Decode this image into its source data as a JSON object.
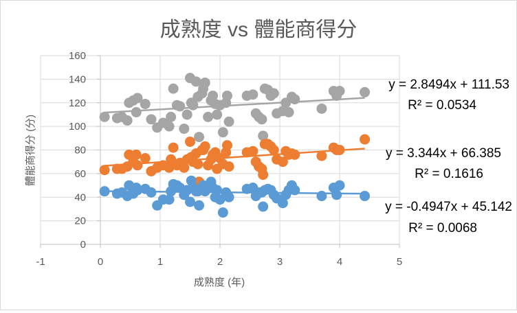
{
  "chart_data": {
    "type": "scatter",
    "title": "成熟度 vs 體能商得分",
    "xlabel": "成熟度 (年)",
    "ylabel": "體能商得分 (分)",
    "xlim": [
      -1,
      5
    ],
    "ylim": [
      0,
      160
    ],
    "xticks": [
      "-1",
      "0",
      "1",
      "2",
      "3",
      "4",
      "5"
    ],
    "yticks": [
      "0",
      "20",
      "40",
      "60",
      "80",
      "100",
      "120",
      "140",
      "160"
    ],
    "grid": true,
    "legend": "none",
    "colors": {
      "blue": "#5b9bd5",
      "orange": "#ed7d31",
      "gray": "#a5a5a5"
    },
    "series": [
      {
        "color": "#a5a5a5",
        "trendline": {
          "slope": 2.8494,
          "intercept": 111.53,
          "x_range": [
            0.07,
            4.42
          ]
        },
        "equation": "y = 2.8494x + 111.53",
        "r2": "R² = 0.0534",
        "x": [
          0.07,
          0.28,
          0.36,
          0.45,
          0.48,
          0.55,
          0.6,
          0.62,
          0.75,
          0.85,
          0.95,
          1.05,
          1.15,
          1.18,
          1.22,
          1.28,
          1.33,
          1.4,
          1.45,
          1.5,
          1.52,
          1.55,
          1.6,
          1.63,
          1.65,
          1.7,
          1.72,
          1.75,
          1.8,
          1.85,
          1.88,
          1.92,
          1.95,
          2.0,
          2.05,
          2.1,
          2.12,
          2.15,
          2.45,
          2.55,
          2.6,
          2.65,
          2.7,
          2.72,
          2.75,
          2.8,
          2.85,
          2.9,
          2.95,
          3.05,
          3.1,
          3.15,
          3.2,
          3.25,
          3.7,
          3.9,
          3.95,
          4.0,
          4.42
        ],
        "y": [
          108,
          107,
          108,
          105,
          120,
          122,
          112,
          124,
          119,
          106,
          99,
          103,
          100,
          108,
          132,
          118,
          117,
          98,
          110,
          141,
          120,
          118,
          138,
          125,
          91,
          128,
          132,
          137,
          108,
          122,
          126,
          119,
          110,
          118,
          95,
          120,
          126,
          104,
          126,
          127,
          111,
          108,
          106,
          92,
          132,
          131,
          126,
          128,
          111,
          113,
          120,
          112,
          125,
          123,
          115,
          130,
          126,
          130,
          129
        ]
      },
      {
        "color": "#ed7d31",
        "trendline": {
          "slope": 3.344,
          "intercept": 66.385,
          "x_range": [
            0.07,
            4.42
          ]
        },
        "equation": "y = 3.344x + 66.385",
        "r2": "R² = 0.1616",
        "x": [
          0.07,
          0.28,
          0.36,
          0.45,
          0.48,
          0.55,
          0.6,
          0.62,
          0.75,
          0.85,
          0.95,
          1.05,
          1.15,
          1.18,
          1.22,
          1.28,
          1.33,
          1.4,
          1.45,
          1.5,
          1.52,
          1.55,
          1.6,
          1.63,
          1.65,
          1.7,
          1.72,
          1.75,
          1.8,
          1.85,
          1.88,
          1.92,
          1.95,
          2.0,
          2.05,
          2.1,
          2.12,
          2.15,
          2.45,
          2.55,
          2.6,
          2.65,
          2.7,
          2.72,
          2.75,
          2.8,
          2.85,
          2.9,
          2.95,
          3.05,
          3.1,
          3.15,
          3.2,
          3.25,
          3.7,
          3.9,
          3.95,
          4.0,
          4.42
        ],
        "y": [
          63,
          64,
          64,
          66,
          76,
          70,
          76,
          67,
          73,
          62,
          65,
          67,
          65,
          72,
          82,
          67,
          69,
          65,
          72,
          87,
          74,
          70,
          77,
          68,
          53,
          80,
          80,
          83,
          67,
          72,
          76,
          78,
          64,
          73,
          68,
          78,
          84,
          66,
          78,
          79,
          70,
          66,
          64,
          59,
          85,
          85,
          83,
          80,
          72,
          70,
          79,
          76,
          77,
          76,
          75,
          82,
          80,
          80,
          89
        ]
      },
      {
        "color": "#5b9bd5",
        "trendline": {
          "slope": -0.4947,
          "intercept": 45.142,
          "x_range": [
            0.07,
            4.42
          ]
        },
        "equation": "y = -0.4947x + 45.142",
        "r2": "R² = 0.0068",
        "x": [
          0.07,
          0.28,
          0.36,
          0.45,
          0.48,
          0.55,
          0.6,
          0.62,
          0.75,
          0.85,
          0.95,
          1.05,
          1.15,
          1.18,
          1.22,
          1.28,
          1.33,
          1.4,
          1.45,
          1.5,
          1.52,
          1.55,
          1.6,
          1.63,
          1.65,
          1.7,
          1.72,
          1.75,
          1.8,
          1.85,
          1.88,
          1.92,
          1.95,
          2.0,
          2.05,
          2.1,
          2.12,
          2.15,
          2.45,
          2.55,
          2.6,
          2.65,
          2.7,
          2.72,
          2.75,
          2.8,
          2.85,
          2.9,
          2.95,
          3.05,
          3.1,
          3.15,
          3.2,
          3.25,
          3.7,
          3.9,
          3.95,
          4.0,
          4.42
        ],
        "y": [
          45,
          43,
          44,
          41,
          50,
          43,
          48,
          46,
          47,
          44,
          33,
          38,
          38,
          45,
          51,
          50,
          48,
          42,
          46,
          36,
          54,
          48,
          45,
          45,
          33,
          47,
          50,
          45,
          50,
          53,
          48,
          40,
          46,
          38,
          27,
          44,
          42,
          40,
          47,
          48,
          41,
          44,
          44,
          32,
          46,
          47,
          46,
          42,
          39,
          35,
          42,
          46,
          50,
          46,
          41,
          48,
          42,
          50,
          41
        ]
      }
    ]
  }
}
